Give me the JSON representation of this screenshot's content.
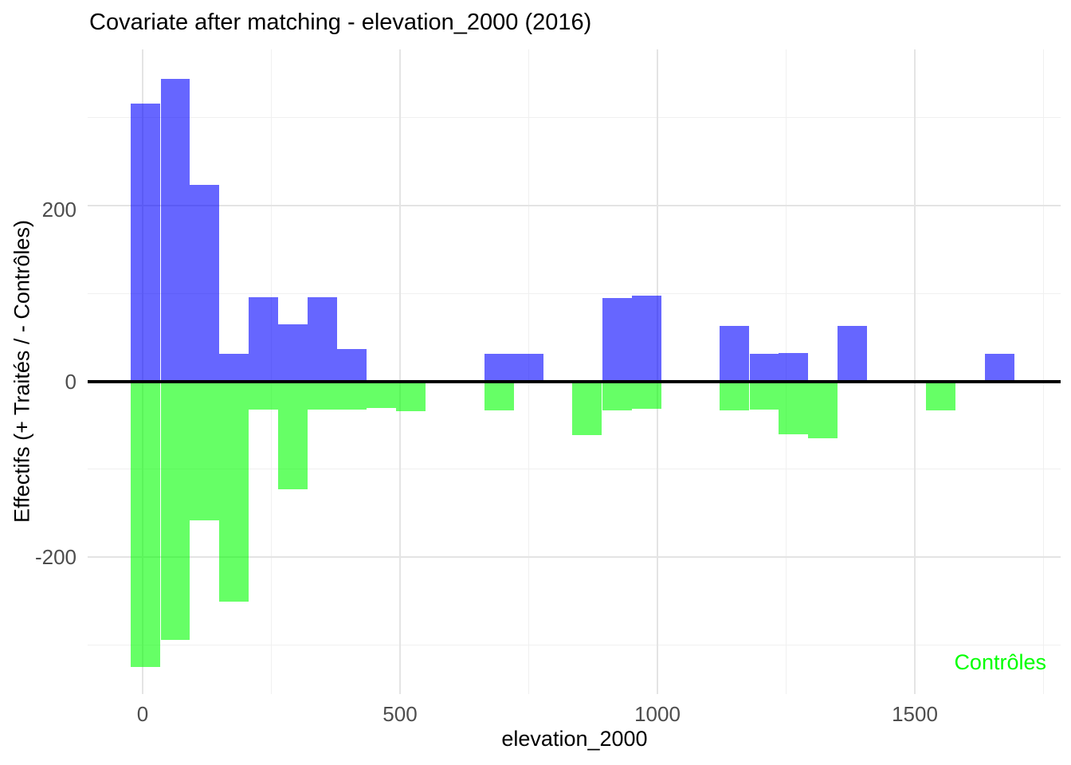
{
  "title": "Covariate after matching - elevation_2000 (2016)",
  "annotation": {
    "label": "Contrôles",
    "color": "#00ff00"
  },
  "axes": {
    "x": {
      "label": "elevation_2000",
      "ticks": [
        "0",
        "500",
        "1000",
        "1500"
      ],
      "tick_values": [
        0,
        500,
        1000,
        1500
      ],
      "minor_tick_values": [
        250,
        750,
        1250,
        1750
      ]
    },
    "y": {
      "label": "Effectifs (+ Traités / - Contrôles)",
      "ticks": [
        "200",
        "0",
        "-200"
      ],
      "tick_values": [
        200,
        0,
        -200
      ],
      "minor_tick_values": [
        300,
        100,
        -100,
        -300
      ]
    }
  },
  "chart_data": {
    "type": "bar",
    "subtype": "mirrored-histogram",
    "title": "Covariate after matching - elevation_2000 (2016)",
    "xlabel": "elevation_2000",
    "ylabel": "Effectifs (+ Traités / - Contrôles)",
    "xlim": [
      -109,
      1778
    ],
    "ylim": [
      -358,
      377
    ],
    "grid": true,
    "zero_line_color": "#000000",
    "bin_width": 57.2,
    "x": [
      5,
      63,
      120,
      177,
      234,
      291,
      349,
      406,
      463,
      520,
      577,
      635,
      692,
      749,
      806,
      863,
      921,
      978,
      1035,
      1092,
      1149,
      1207,
      1264,
      1321,
      1378,
      1435,
      1493,
      1550,
      1607,
      1664
    ],
    "series": [
      {
        "name": "Traités",
        "sign": "positive",
        "color": "#0000ff",
        "alpha": 0.6,
        "values": [
          316,
          344,
          224,
          31,
          96,
          65,
          96,
          37,
          0,
          0,
          0,
          0,
          31,
          31,
          0,
          0,
          95,
          98,
          0,
          0,
          63,
          31,
          32,
          0,
          63,
          0,
          0,
          0,
          0,
          31
        ]
      },
      {
        "name": "Contrôles",
        "sign": "negative",
        "color": "#00ff00",
        "alpha": 0.6,
        "values": [
          -325,
          -294,
          -158,
          -251,
          -32,
          -123,
          -32,
          -32,
          -30,
          -34,
          0,
          0,
          -33,
          0,
          0,
          -61,
          -33,
          -31,
          0,
          0,
          -33,
          -32,
          -60,
          -65,
          0,
          0,
          0,
          -33,
          0,
          0
        ]
      }
    ]
  }
}
